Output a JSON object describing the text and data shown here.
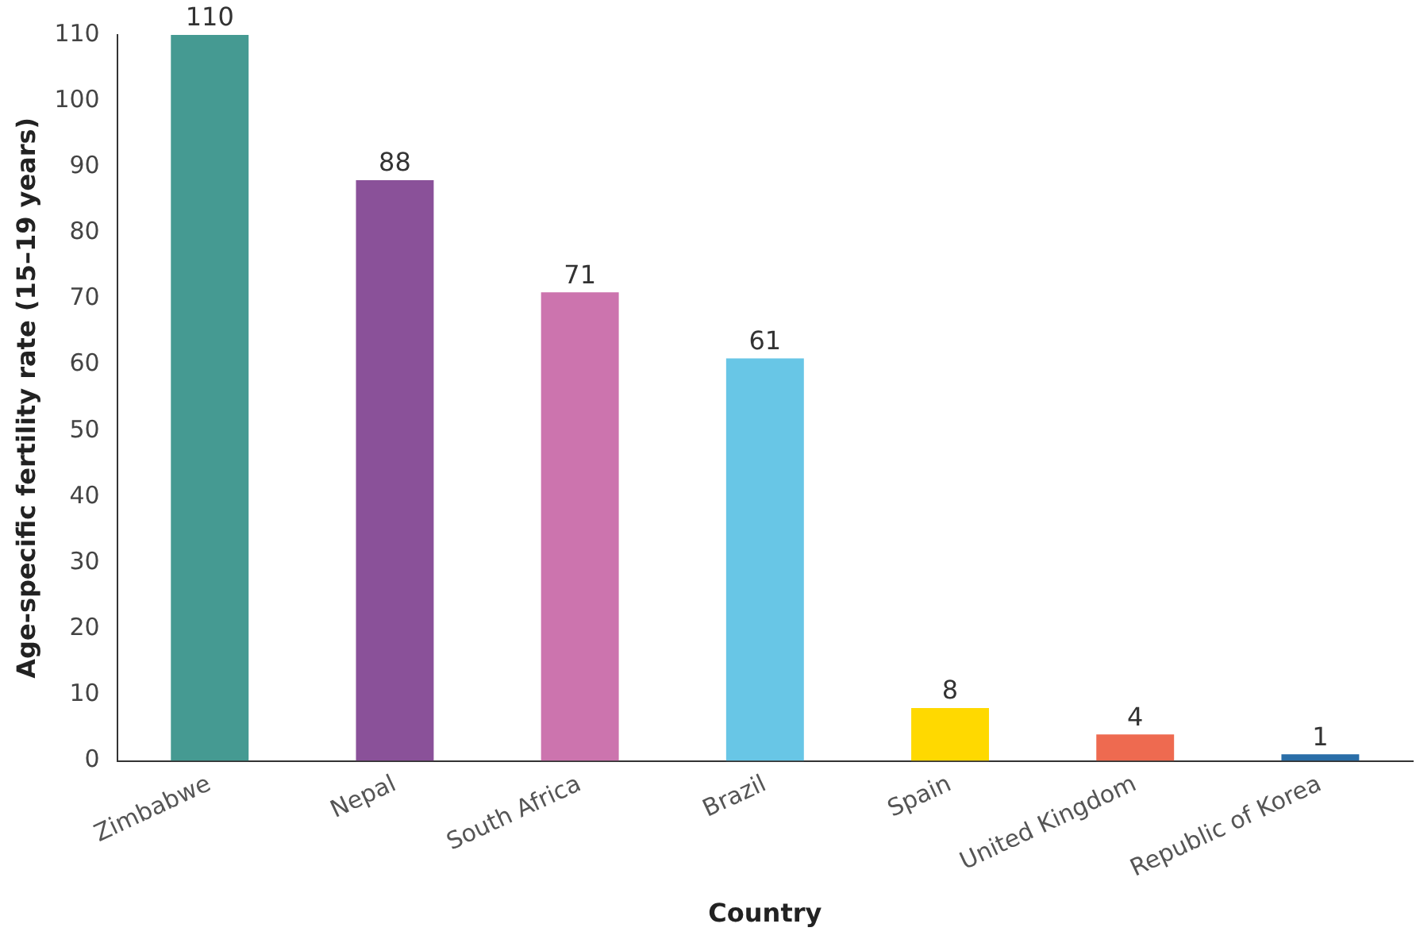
{
  "chart_data": {
    "type": "bar",
    "xlabel": "Country",
    "ylabel": "Age-specific fertility rate (15–19 years)",
    "categories": [
      "Zimbabwe",
      "Nepal",
      "South Africa",
      "Brazil",
      "Spain",
      "United Kingdom",
      "Republic of Korea"
    ],
    "values": [
      110,
      88,
      71,
      61,
      8,
      4,
      1
    ],
    "colors": [
      "#459a92",
      "#8a5199",
      "#cc74ae",
      "#68c6e6",
      "#ffd900",
      "#ee6a50",
      "#2a6ea8"
    ],
    "ylim": [
      0,
      110
    ],
    "yticks": [
      0,
      10,
      20,
      30,
      40,
      50,
      60,
      70,
      80,
      90,
      100,
      110
    ],
    "grid": false,
    "legend": false,
    "data_labels": true
  }
}
